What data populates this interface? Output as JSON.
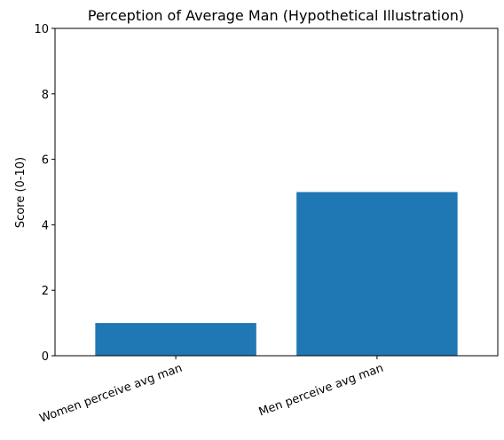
{
  "chart_data": {
    "type": "bar",
    "title": "Perception of Average Man (Hypothetical Illustration)",
    "xlabel": "",
    "ylabel": "Score (0-10)",
    "categories": [
      "Women perceive avg man",
      "Men perceive avg man"
    ],
    "values": [
      1,
      5
    ],
    "ylim": [
      0,
      10
    ],
    "yticks": [
      0,
      2,
      4,
      6,
      8,
      10
    ],
    "grid": false,
    "bar_color": "#1f77b4"
  }
}
